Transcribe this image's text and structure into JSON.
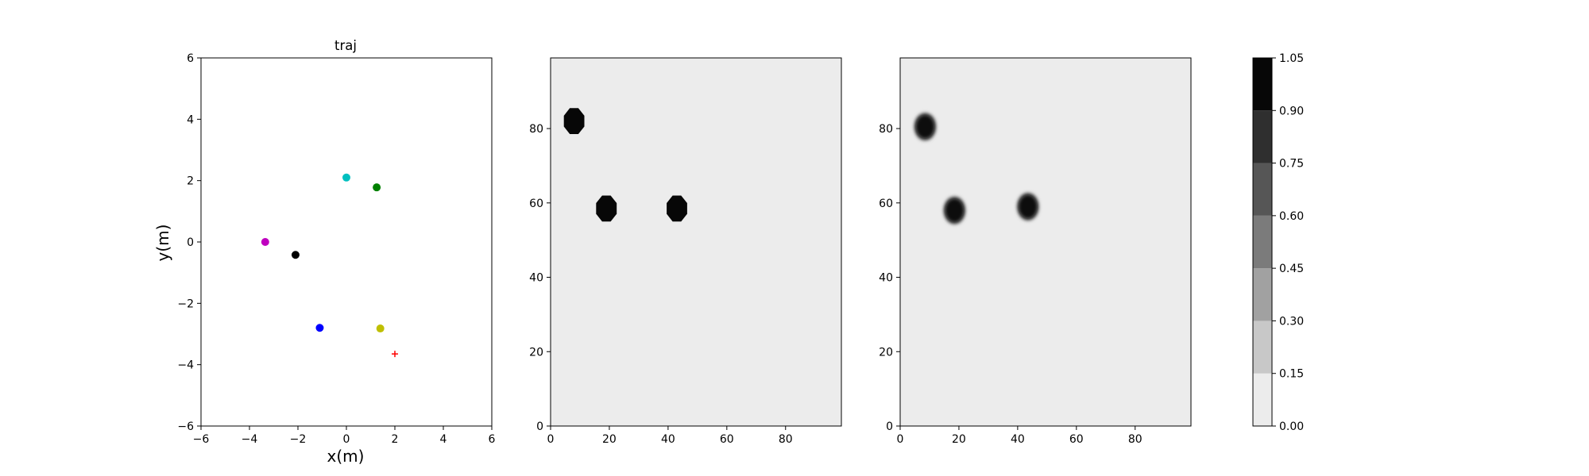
{
  "chart_data": [
    {
      "type": "scatter",
      "title": "traj",
      "xlabel": "x(m)",
      "ylabel": "y(m)",
      "xlim": [
        -6,
        6
      ],
      "ylim": [
        -6,
        6
      ],
      "xticks": [
        -6,
        -4,
        -2,
        0,
        2,
        4,
        6
      ],
      "yticks": [
        -6,
        -4,
        -2,
        0,
        2,
        4,
        6
      ],
      "xtick_labels": [
        "−6",
        "−4",
        "−2",
        "0",
        "2",
        "4",
        "6"
      ],
      "ytick_labels": [
        "−6",
        "−4",
        "−2",
        "0",
        "2",
        "4",
        "6"
      ],
      "grid": false,
      "points": [
        {
          "x": 0.0,
          "y": 2.1,
          "color": "#00bfbf",
          "marker": "circle"
        },
        {
          "x": 1.25,
          "y": 1.78,
          "color": "#008000",
          "marker": "circle"
        },
        {
          "x": -3.35,
          "y": 0.0,
          "color": "#bf00bf",
          "marker": "circle"
        },
        {
          "x": -2.1,
          "y": -0.42,
          "color": "#000000",
          "marker": "circle"
        },
        {
          "x": -1.1,
          "y": -2.8,
          "color": "#0000ff",
          "marker": "circle"
        },
        {
          "x": 1.4,
          "y": -2.82,
          "color": "#bfbf00",
          "marker": "circle"
        },
        {
          "x": 2.0,
          "y": -3.65,
          "color": "#ff0000",
          "marker": "plus"
        }
      ]
    },
    {
      "type": "heatmap",
      "title": "",
      "xlabel": "",
      "ylabel": "",
      "xlim": [
        0,
        99
      ],
      "ylim": [
        0,
        99
      ],
      "xticks": [
        0,
        20,
        40,
        60,
        80
      ],
      "yticks": [
        0,
        20,
        40,
        60,
        80
      ],
      "xtick_labels": [
        "0",
        "20",
        "40",
        "60",
        "80"
      ],
      "ytick_labels": [
        "0",
        "20",
        "40",
        "60",
        "80"
      ],
      "background_value": 0.07,
      "blobs": [
        {
          "x": 8,
          "y": 82,
          "radius": 3.6,
          "value": 1.0,
          "shape": "octagon"
        },
        {
          "x": 19,
          "y": 58.5,
          "radius": 3.6,
          "value": 1.0,
          "shape": "octagon"
        },
        {
          "x": 43,
          "y": 58.5,
          "radius": 3.6,
          "value": 1.0,
          "shape": "octagon"
        }
      ]
    },
    {
      "type": "heatmap",
      "title": "",
      "xlabel": "",
      "ylabel": "",
      "xlim": [
        0,
        99
      ],
      "ylim": [
        0,
        99
      ],
      "xticks": [
        0,
        20,
        40,
        60,
        80
      ],
      "yticks": [
        0,
        20,
        40,
        60,
        80
      ],
      "xtick_labels": [
        "0",
        "20",
        "40",
        "60",
        "80"
      ],
      "ytick_labels": [
        "0",
        "20",
        "40",
        "60",
        "80"
      ],
      "background_value": 0.07,
      "blobs": [
        {
          "x": 8.5,
          "y": 80.5,
          "radius": 3.6,
          "value": 1.0,
          "shape": "blurred"
        },
        {
          "x": 18.5,
          "y": 58,
          "radius": 3.6,
          "value": 1.0,
          "shape": "blurred"
        },
        {
          "x": 43.5,
          "y": 59,
          "radius": 3.6,
          "value": 1.0,
          "shape": "blurred"
        }
      ]
    }
  ],
  "colorbar": {
    "levels": [
      0.0,
      0.15,
      0.3,
      0.45,
      0.6,
      0.75,
      0.9,
      1.05
    ],
    "tick_labels": [
      "0.00",
      "0.15",
      "0.30",
      "0.45",
      "0.60",
      "0.75",
      "0.90",
      "1.05"
    ],
    "colors": [
      "#ececec",
      "#c8c8c8",
      "#a1a1a1",
      "#7b7b7b",
      "#565656",
      "#2f2f2f",
      "#070707"
    ]
  }
}
